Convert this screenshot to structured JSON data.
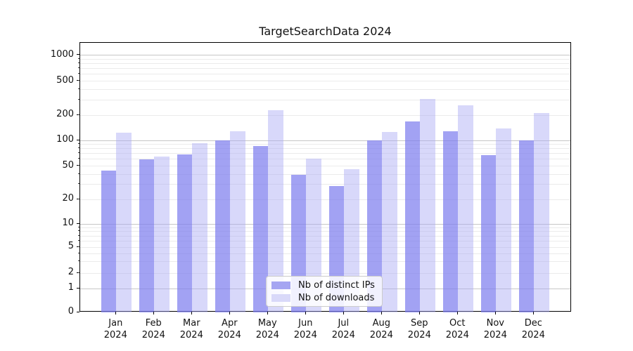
{
  "title": "TargetSearchData 2024",
  "chart_data": {
    "type": "bar",
    "title": "TargetSearchData 2024",
    "scale": "symlog",
    "grid": true,
    "legend_position": "lower center",
    "categories": [
      "Jan 2024",
      "Feb 2024",
      "Mar 2024",
      "Apr 2024",
      "May 2024",
      "Jun 2024",
      "Jul 2024",
      "Aug 2024",
      "Sep 2024",
      "Oct 2024",
      "Nov 2024",
      "Dec 2024"
    ],
    "series": [
      {
        "name": "Nb of distinct IPs",
        "color": "#a5a5f2",
        "fill": "rgba(124,124,238,0.71)",
        "values": [
          44,
          60,
          68,
          100,
          86,
          39,
          29,
          100,
          170,
          130,
          67,
          100
        ]
      },
      {
        "name": "Nb of downloads",
        "color": "#d9d9f9",
        "fill": "rgba(169,169,244,0.45)",
        "values": [
          123,
          65,
          94,
          130,
          228,
          61,
          46,
          127,
          310,
          260,
          140,
          210
        ]
      }
    ],
    "yticks": [
      "0",
      "1",
      "2",
      "5",
      "10",
      "20",
      "50",
      "100",
      "200",
      "500",
      "1000"
    ],
    "ylim": [
      0,
      1400
    ],
    "xlabel": "",
    "ylabel": ""
  },
  "colors": {
    "grid_major": "#c6c6c6",
    "grid_minor": "#ebebeb",
    "spine": "#000000",
    "legend_border": "#cccccc",
    "background": "#ffffff"
  }
}
